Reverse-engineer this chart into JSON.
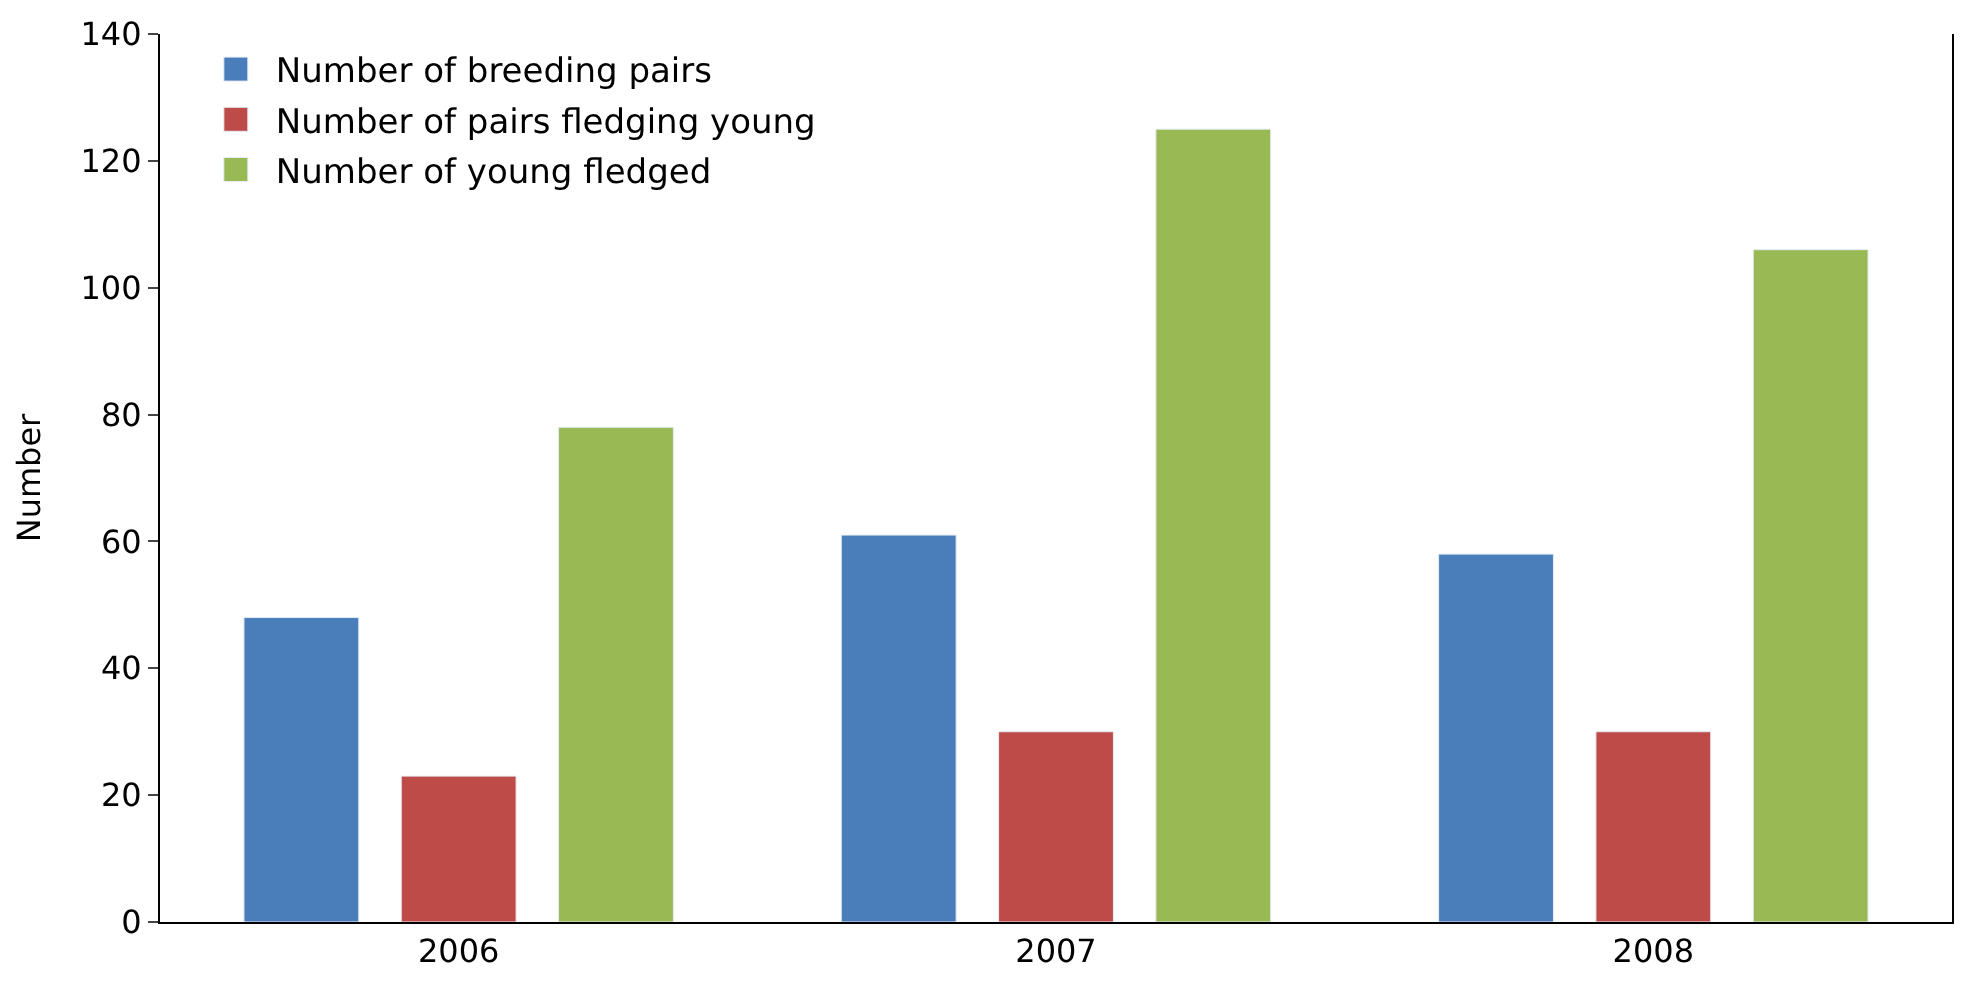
{
  "chart_data": {
    "type": "bar",
    "ylabel": "Number",
    "categories": [
      "2006",
      "2007",
      "2008"
    ],
    "series": [
      {
        "name": "Number of breeding pairs",
        "color": "#4a7ebb",
        "values": [
          48,
          61,
          58
        ]
      },
      {
        "name": "Number of pairs fledging young",
        "color": "#be4b48",
        "values": [
          23,
          30,
          30
        ]
      },
      {
        "name": "Number of young fledged",
        "color": "#98b954",
        "values": [
          78,
          125,
          106
        ]
      }
    ],
    "ylim": [
      0,
      140
    ],
    "yticks": [
      0,
      20,
      40,
      60,
      80,
      100,
      120,
      140
    ],
    "legend": "top left"
  }
}
